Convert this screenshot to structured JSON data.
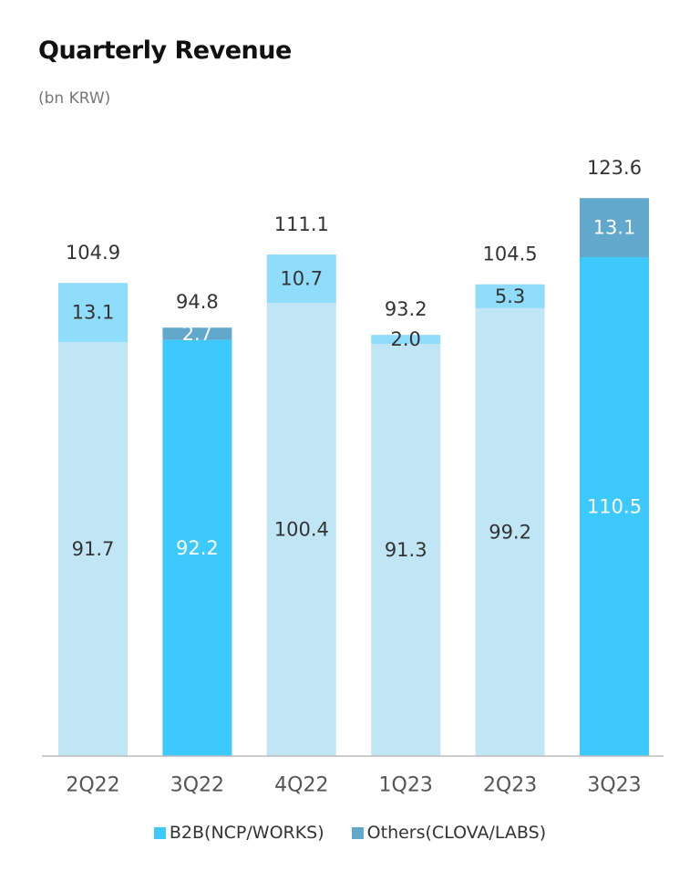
{
  "chart_data": {
    "type": "bar",
    "title": "Quarterly Revenue",
    "subtitle": "(bn KRW)",
    "categories": [
      "2Q22",
      "3Q22",
      "4Q22",
      "1Q23",
      "2Q23",
      "3Q23"
    ],
    "series": [
      {
        "name": "B2B(NCP/WORKS)",
        "values": [
          91.7,
          92.2,
          100.4,
          91.3,
          99.2,
          110.5
        ]
      },
      {
        "name": "Others(CLOVA/LABS)",
        "values": [
          13.1,
          2.7,
          10.7,
          2.0,
          5.3,
          13.1
        ]
      }
    ],
    "totals": [
      "104.9",
      "94.8",
      "111.1",
      "93.2",
      "104.5",
      "123.6"
    ],
    "segment_labels": [
      [
        "91.7",
        "13.1"
      ],
      [
        "92.2",
        "2.7"
      ],
      [
        "100.4",
        "10.7"
      ],
      [
        "91.3",
        "2.0"
      ],
      [
        "99.2",
        "5.3"
      ],
      [
        "110.5",
        "13.1"
      ]
    ],
    "highlighted": [
      false,
      true,
      false,
      false,
      false,
      true
    ],
    "stacked": true,
    "ylim": [
      0,
      125
    ],
    "grid": false,
    "legend_position": "bottom",
    "colors": {
      "b2b": "#3ec9fd",
      "others": "#62a8cd",
      "b2b_muted": "#c0e5f5",
      "others_muted": "#90dcfb",
      "axis": "#bbbbbb",
      "label_dark": "#333333",
      "label_light": "#ffffff"
    }
  }
}
